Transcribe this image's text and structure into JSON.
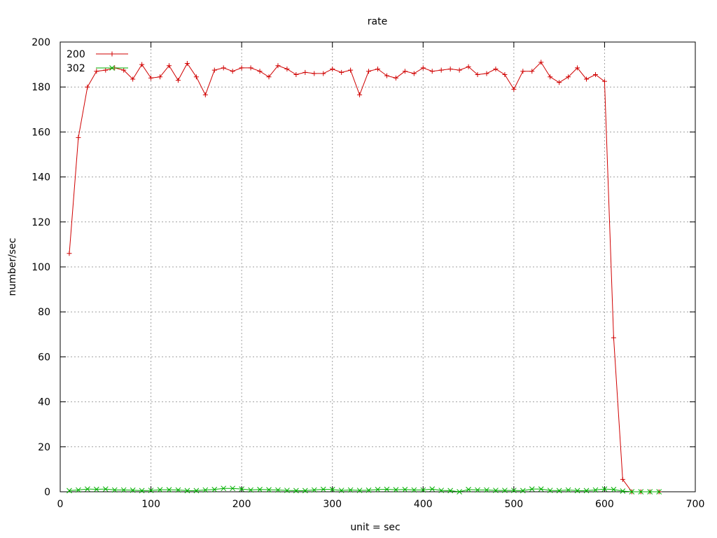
{
  "chart_data": {
    "type": "line",
    "title": "rate",
    "xlabel": "unit = sec",
    "ylabel": "number/sec",
    "xlim": [
      0,
      700
    ],
    "ylim": [
      0,
      200
    ],
    "xticks": [
      0,
      100,
      200,
      300,
      400,
      500,
      600,
      700
    ],
    "yticks": [
      0,
      20,
      40,
      60,
      80,
      100,
      120,
      140,
      160,
      180,
      200
    ],
    "grid": true,
    "legend_position": "top-left",
    "series": [
      {
        "name": "200",
        "color": "#d00000",
        "marker": "plus",
        "x": [
          10,
          20,
          30,
          40,
          50,
          60,
          70,
          80,
          90,
          100,
          110,
          120,
          130,
          140,
          150,
          160,
          170,
          180,
          190,
          200,
          210,
          220,
          230,
          240,
          250,
          260,
          270,
          280,
          290,
          300,
          310,
          320,
          330,
          340,
          350,
          360,
          370,
          380,
          390,
          400,
          410,
          420,
          430,
          440,
          450,
          460,
          470,
          480,
          490,
          500,
          510,
          520,
          530,
          540,
          550,
          560,
          570,
          580,
          590,
          600,
          610,
          620,
          630,
          640,
          650,
          660
        ],
        "y": [
          106,
          157.5,
          180,
          187,
          187.5,
          188.5,
          187.5,
          183.5,
          190,
          184,
          184.5,
          189.5,
          183,
          190.5,
          184.5,
          176.5,
          187.5,
          188.5,
          187,
          188.5,
          188.5,
          187,
          184.5,
          189.5,
          188,
          185.5,
          186.5,
          186,
          186,
          188,
          186.5,
          187.5,
          176.5,
          187,
          188,
          185,
          184,
          187,
          186,
          188.5,
          187,
          187.5,
          188,
          187.5,
          189,
          185.5,
          186,
          188,
          185.5,
          179,
          187,
          187,
          191,
          184.5,
          182,
          184.5,
          188.5,
          183.5,
          185.5,
          182.5,
          68.5,
          5.5,
          0,
          0,
          0,
          0
        ]
      },
      {
        "name": "302",
        "color": "#00b000",
        "marker": "cross",
        "x": [
          10,
          20,
          30,
          40,
          50,
          60,
          70,
          80,
          90,
          100,
          110,
          120,
          130,
          140,
          150,
          160,
          170,
          180,
          190,
          200,
          210,
          220,
          230,
          240,
          250,
          260,
          270,
          280,
          290,
          300,
          310,
          320,
          330,
          340,
          350,
          360,
          370,
          380,
          390,
          400,
          410,
          420,
          430,
          440,
          450,
          460,
          470,
          480,
          490,
          500,
          510,
          520,
          530,
          540,
          550,
          560,
          570,
          580,
          590,
          600,
          610,
          620,
          630,
          640,
          650,
          660
        ],
        "y": [
          0.5,
          0.8,
          1.2,
          1.1,
          1.2,
          0.8,
          0.8,
          0.7,
          0.5,
          0.6,
          0.9,
          0.9,
          0.8,
          0.5,
          0.5,
          0.8,
          1,
          1.5,
          1.5,
          1.2,
          0.8,
          1,
          0.9,
          0.8,
          0.6,
          0.5,
          0.5,
          0.8,
          1.1,
          1,
          0.6,
          0.8,
          0.6,
          0.7,
          1,
          1.1,
          0.9,
          1,
          0.8,
          0.8,
          1.2,
          0.6,
          0.5,
          0,
          1,
          0.8,
          0.8,
          0.6,
          0.6,
          0.6,
          0.5,
          1.2,
          1.2,
          0.6,
          0.5,
          0.8,
          0.5,
          0.5,
          0.8,
          1.2,
          1,
          0.3,
          0,
          0,
          0,
          0
        ]
      }
    ]
  }
}
